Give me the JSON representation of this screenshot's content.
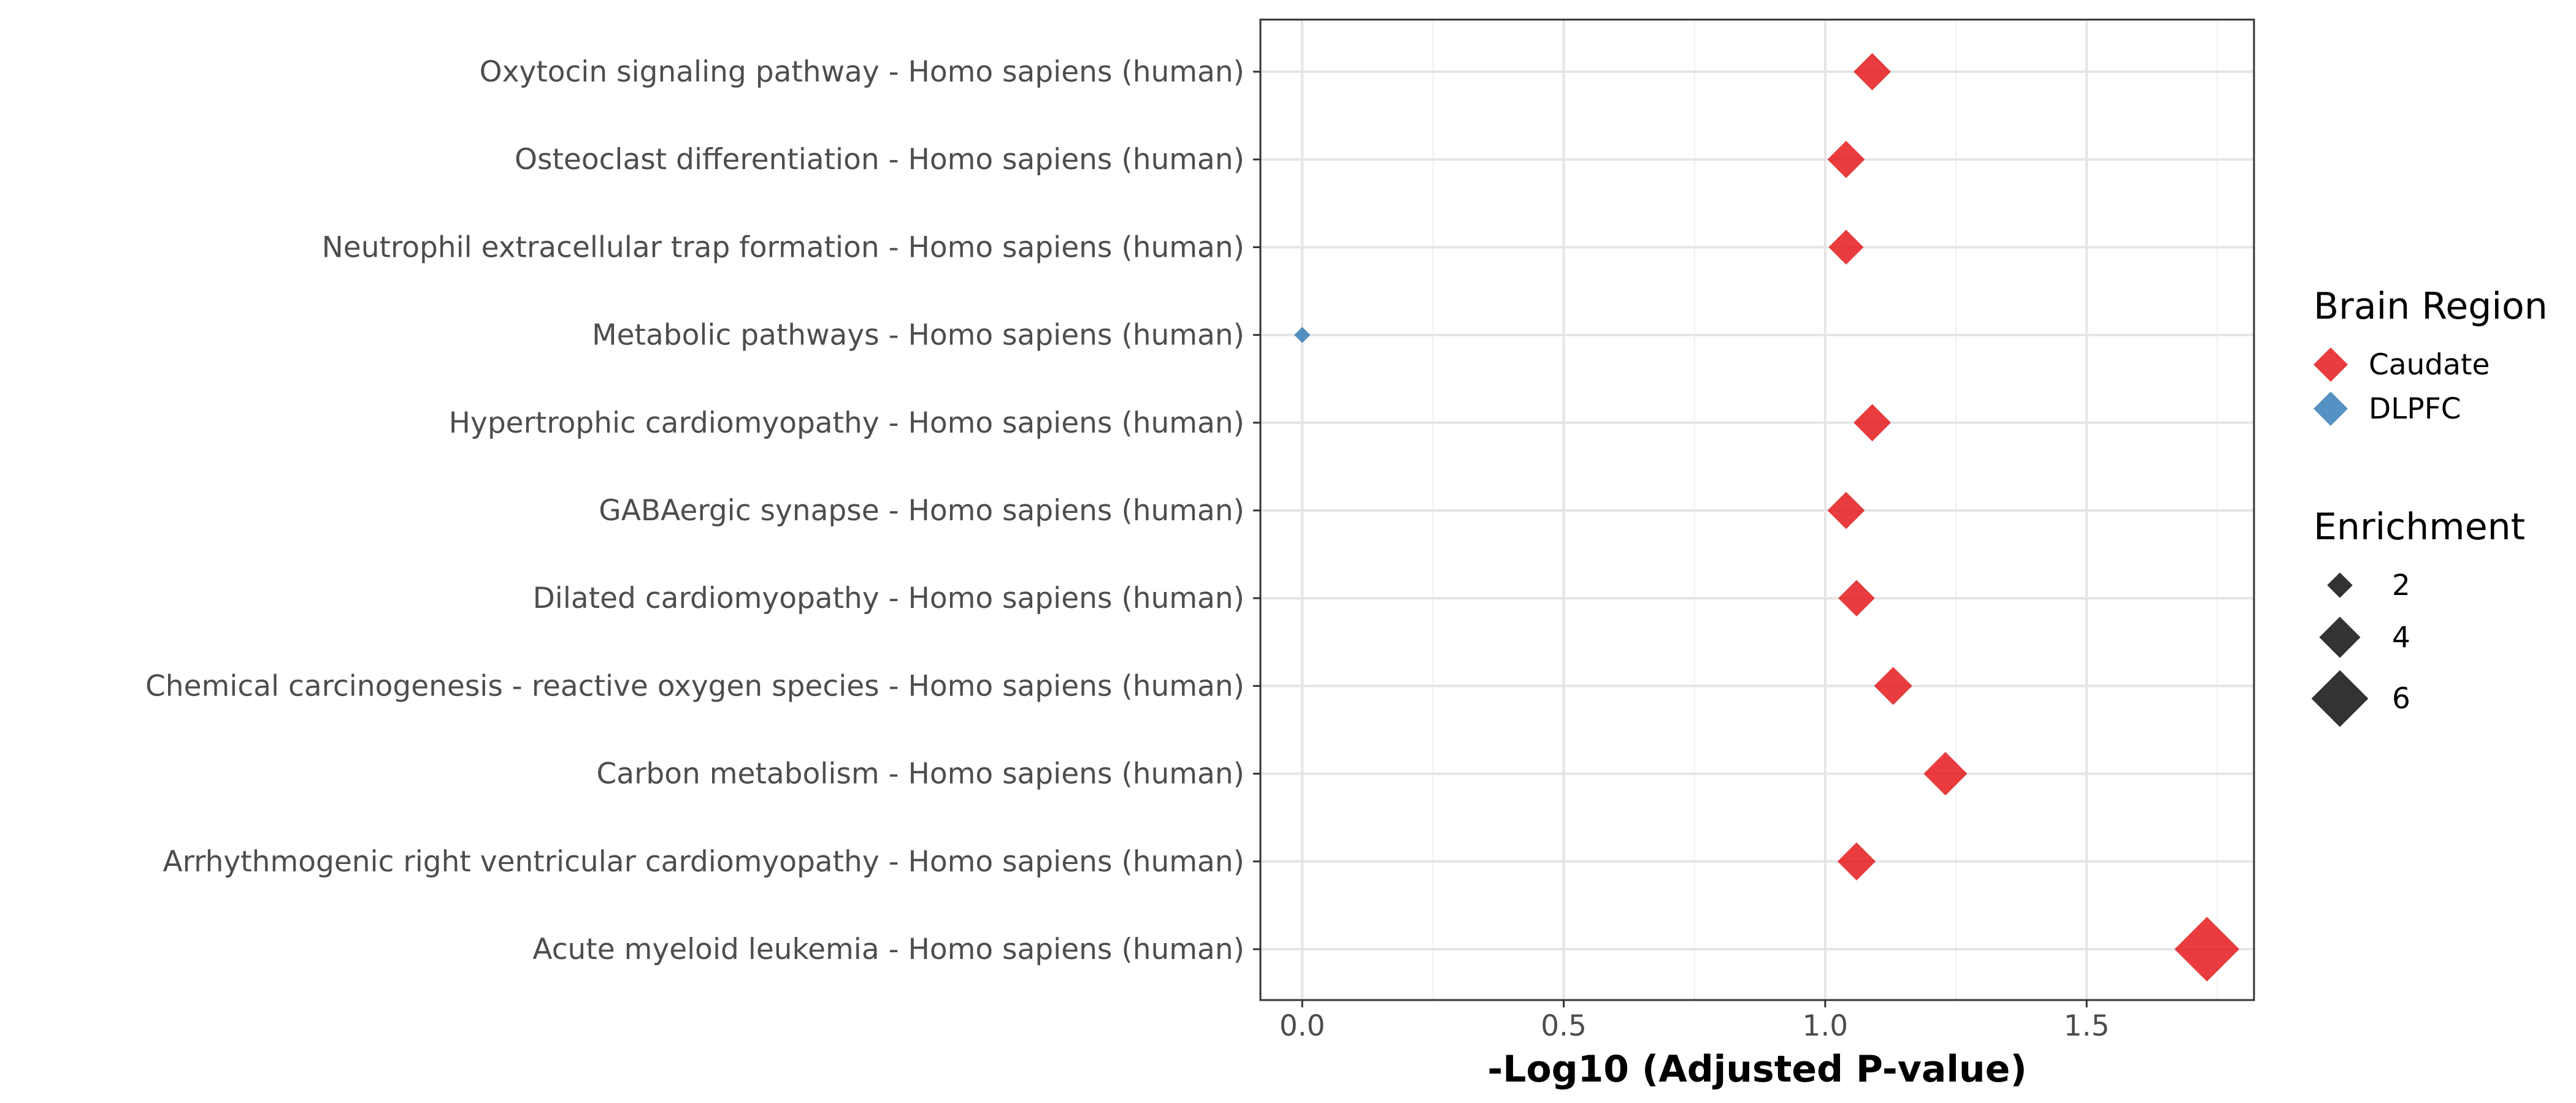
{
  "chart_data": {
    "type": "scatter",
    "title": "",
    "xlabel": "-Log10 (Adjusted P-value)",
    "ylabel": "",
    "xlim": [
      -0.08,
      1.82
    ],
    "x_ticks": [
      0.0,
      0.5,
      1.0,
      1.5
    ],
    "x_tick_labels": [
      "0.0",
      "0.5",
      "1.0",
      "1.5"
    ],
    "grid": true,
    "categories": [
      "Oxytocin signaling pathway - Homo sapiens (human)",
      "Osteoclast differentiation - Homo sapiens (human)",
      "Neutrophil extracellular trap formation - Homo sapiens (human)",
      "Metabolic pathways - Homo sapiens (human)",
      "Hypertrophic cardiomyopathy - Homo sapiens (human)",
      "GABAergic synapse - Homo sapiens (human)",
      "Dilated cardiomyopathy - Homo sapiens (human)",
      "Chemical carcinogenesis - reactive oxygen species - Homo sapiens (human)",
      "Carbon metabolism - Homo sapiens (human)",
      "Arrhythmogenic right ventricular cardiomyopathy - Homo sapiens (human)",
      "Acute myeloid leukemia - Homo sapiens (human)"
    ],
    "points": [
      {
        "category": "Oxytocin signaling pathway - Homo sapiens (human)",
        "x": 1.09,
        "region": "Caudate",
        "enrichment": 3.5
      },
      {
        "category": "Osteoclast differentiation - Homo sapiens (human)",
        "x": 1.04,
        "region": "Caudate",
        "enrichment": 3.5
      },
      {
        "category": "Neutrophil extracellular trap formation - Homo sapiens (human)",
        "x": 1.04,
        "region": "Caudate",
        "enrichment": 3.2
      },
      {
        "category": "Metabolic pathways - Homo sapiens (human)",
        "x": 0.0,
        "region": "DLPFC",
        "enrichment": 0.8
      },
      {
        "category": "Hypertrophic cardiomyopathy - Homo sapiens (human)",
        "x": 1.09,
        "region": "Caudate",
        "enrichment": 3.5
      },
      {
        "category": "GABAergic synapse - Homo sapiens (human)",
        "x": 1.04,
        "region": "Caudate",
        "enrichment": 3.5
      },
      {
        "category": "Dilated cardiomyopathy - Homo sapiens (human)",
        "x": 1.06,
        "region": "Caudate",
        "enrichment": 3.4
      },
      {
        "category": "Chemical carcinogenesis - reactive oxygen species - Homo sapiens (human)",
        "x": 1.13,
        "region": "Caudate",
        "enrichment": 3.6
      },
      {
        "category": "Carbon metabolism - Homo sapiens (human)",
        "x": 1.23,
        "region": "Caudate",
        "enrichment": 4.3
      },
      {
        "category": "Arrhythmogenic right ventricular cardiomyopathy - Homo sapiens (human)",
        "x": 1.06,
        "region": "Caudate",
        "enrichment": 3.6
      },
      {
        "category": "Acute myeloid leukemia - Homo sapiens (human)",
        "x": 1.73,
        "region": "Caudate",
        "enrichment": 7.0
      }
    ],
    "legend": {
      "placement": "right",
      "color_title": "Brain Region",
      "color_items": [
        {
          "label": "Caudate",
          "color": "#e41a1c"
        },
        {
          "label": "DLPFC",
          "color": "#377eb8"
        }
      ],
      "size_title": "Enrichment",
      "size_items": [
        {
          "label": "2",
          "value": 2
        },
        {
          "label": "4",
          "value": 4
        },
        {
          "label": "6",
          "value": 6
        }
      ]
    },
    "colors": {
      "Caudate": "#e41a1c",
      "DLPFC": "#377eb8",
      "size_legend": "#333333"
    }
  }
}
